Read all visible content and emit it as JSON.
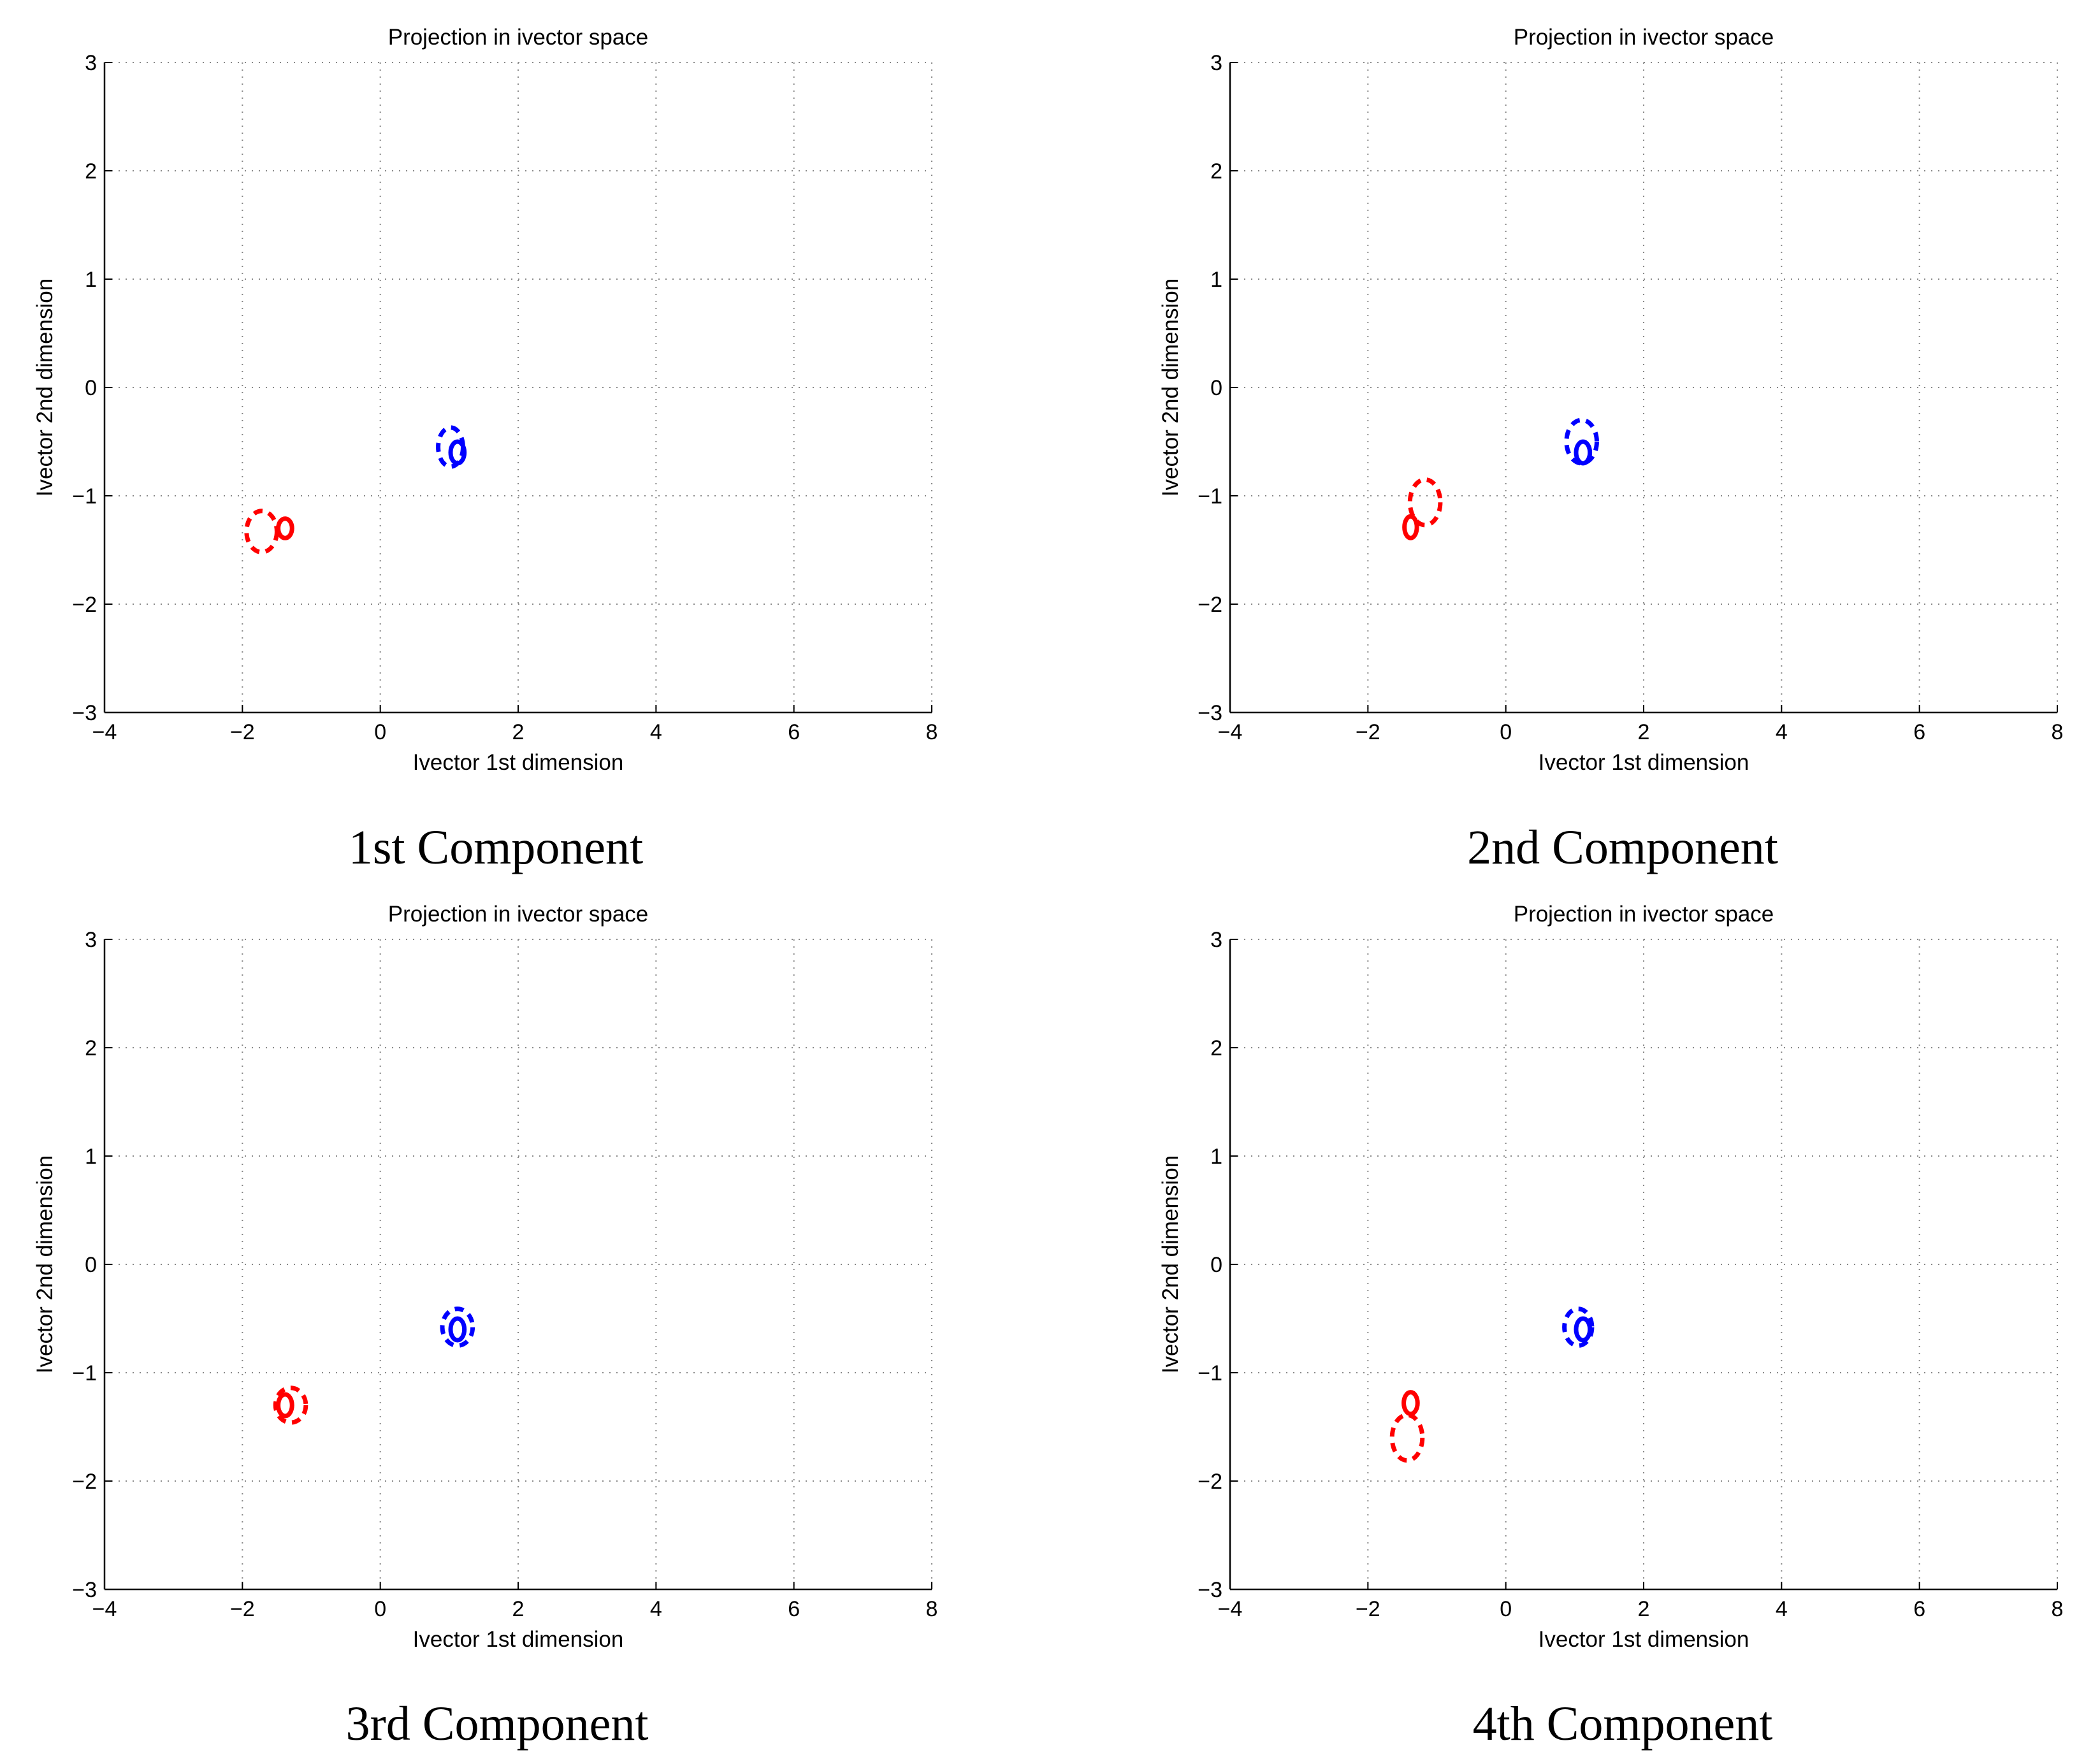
{
  "figure": {
    "panels": [
      {
        "caption": "1st Component"
      },
      {
        "caption": "2nd Component"
      },
      {
        "caption": "3rd Component"
      },
      {
        "caption": "4th Component"
      }
    ]
  },
  "colors": {
    "class_a": "#ff0000",
    "class_b": "#0000ff",
    "grid": "#888888",
    "axis": "#000000"
  },
  "chart_data": [
    {
      "type": "scatter",
      "title": "Projection in ivector space",
      "xlabel": "Ivector 1st dimension",
      "ylabel": "Ivector 2nd dimension",
      "xlim": [
        -4,
        8
      ],
      "ylim": [
        -3,
        3
      ],
      "xticks": [
        -4,
        -2,
        0,
        2,
        4,
        6,
        8
      ],
      "yticks": [
        -3,
        -2,
        -1,
        0,
        1,
        2,
        3
      ],
      "xtick_labels": [
        "−4",
        "−2",
        "0",
        "2",
        "4",
        "6",
        "8"
      ],
      "ytick_labels": [
        "−3",
        "−2",
        "−1",
        "0",
        "1",
        "2",
        "3"
      ],
      "grid": true,
      "series": [
        {
          "name": "red solid",
          "color": "red",
          "style": "solid",
          "cx": -1.38,
          "cy": -1.3,
          "rx": 0.1,
          "ry": 0.09
        },
        {
          "name": "red dashed",
          "color": "red",
          "style": "dashed",
          "cx": -1.72,
          "cy": -1.33,
          "rx": 0.22,
          "ry": 0.19
        },
        {
          "name": "blue solid",
          "color": "blue",
          "style": "solid",
          "cx": 1.12,
          "cy": -0.6,
          "rx": 0.1,
          "ry": 0.1
        },
        {
          "name": "blue dashed",
          "color": "blue",
          "style": "dashed",
          "cx": 1.02,
          "cy": -0.55,
          "rx": 0.18,
          "ry": 0.18
        }
      ]
    },
    {
      "type": "scatter",
      "title": "Projection in ivector space",
      "xlabel": "Ivector 1st dimension",
      "ylabel": "Ivector 2nd dimension",
      "xlim": [
        -4,
        8
      ],
      "ylim": [
        -3,
        3
      ],
      "xticks": [
        -4,
        -2,
        0,
        2,
        4,
        6,
        8
      ],
      "yticks": [
        -3,
        -2,
        -1,
        0,
        1,
        2,
        3
      ],
      "xtick_labels": [
        "−4",
        "−2",
        "0",
        "2",
        "4",
        "6",
        "8"
      ],
      "ytick_labels": [
        "−3",
        "−2",
        "−1",
        "0",
        "1",
        "2",
        "3"
      ],
      "grid": true,
      "series": [
        {
          "name": "red solid",
          "color": "red",
          "style": "solid",
          "cx": -1.38,
          "cy": -1.29,
          "rx": 0.09,
          "ry": 0.1
        },
        {
          "name": "red dashed",
          "color": "red",
          "style": "dashed",
          "cx": -1.17,
          "cy": -1.06,
          "rx": 0.22,
          "ry": 0.21
        },
        {
          "name": "blue solid",
          "color": "blue",
          "style": "solid",
          "cx": 1.12,
          "cy": -0.6,
          "rx": 0.1,
          "ry": 0.1
        },
        {
          "name": "blue dashed",
          "color": "blue",
          "style": "dashed",
          "cx": 1.1,
          "cy": -0.5,
          "rx": 0.22,
          "ry": 0.2
        }
      ]
    },
    {
      "type": "scatter",
      "title": "Projection in ivector space",
      "xlabel": "Ivector 1st dimension",
      "ylabel": "Ivector 2nd dimension",
      "xlim": [
        -4,
        8
      ],
      "ylim": [
        -3,
        3
      ],
      "xticks": [
        -4,
        -2,
        0,
        2,
        4,
        6,
        8
      ],
      "yticks": [
        -3,
        -2,
        -1,
        0,
        1,
        2,
        3
      ],
      "xtick_labels": [
        "−4",
        "−2",
        "0",
        "2",
        "4",
        "6",
        "8"
      ],
      "ytick_labels": [
        "−3",
        "−2",
        "−1",
        "0",
        "1",
        "2",
        "3"
      ],
      "grid": true,
      "series": [
        {
          "name": "red solid",
          "color": "red",
          "style": "solid",
          "cx": -1.38,
          "cy": -1.3,
          "rx": 0.1,
          "ry": 0.1
        },
        {
          "name": "red dashed",
          "color": "red",
          "style": "dashed",
          "cx": -1.3,
          "cy": -1.3,
          "rx": 0.22,
          "ry": 0.16
        },
        {
          "name": "blue solid",
          "color": "blue",
          "style": "solid",
          "cx": 1.12,
          "cy": -0.6,
          "rx": 0.1,
          "ry": 0.1
        },
        {
          "name": "blue dashed",
          "color": "blue",
          "style": "dashed",
          "cx": 1.12,
          "cy": -0.58,
          "rx": 0.22,
          "ry": 0.17
        }
      ]
    },
    {
      "type": "scatter",
      "title": "Projection in ivector space",
      "xlabel": "Ivector 1st dimension",
      "ylabel": "Ivector 2nd dimension",
      "xlim": [
        -4,
        8
      ],
      "ylim": [
        -3,
        3
      ],
      "xticks": [
        -4,
        -2,
        0,
        2,
        4,
        6,
        8
      ],
      "yticks": [
        -3,
        -2,
        -1,
        0,
        1,
        2,
        3
      ],
      "xtick_labels": [
        "−4",
        "−2",
        "0",
        "2",
        "4",
        "6",
        "8"
      ],
      "ytick_labels": [
        "−3",
        "−2",
        "−1",
        "0",
        "1",
        "2",
        "3"
      ],
      "grid": true,
      "series": [
        {
          "name": "red solid",
          "color": "red",
          "style": "solid",
          "cx": -1.38,
          "cy": -1.28,
          "rx": 0.1,
          "ry": 0.1
        },
        {
          "name": "red dashed",
          "color": "red",
          "style": "dashed",
          "cx": -1.43,
          "cy": -1.6,
          "rx": 0.22,
          "ry": 0.21
        },
        {
          "name": "blue solid",
          "color": "blue",
          "style": "solid",
          "cx": 1.12,
          "cy": -0.6,
          "rx": 0.1,
          "ry": 0.1
        },
        {
          "name": "blue dashed",
          "color": "blue",
          "style": "dashed",
          "cx": 1.05,
          "cy": -0.58,
          "rx": 0.2,
          "ry": 0.17
        }
      ]
    }
  ]
}
